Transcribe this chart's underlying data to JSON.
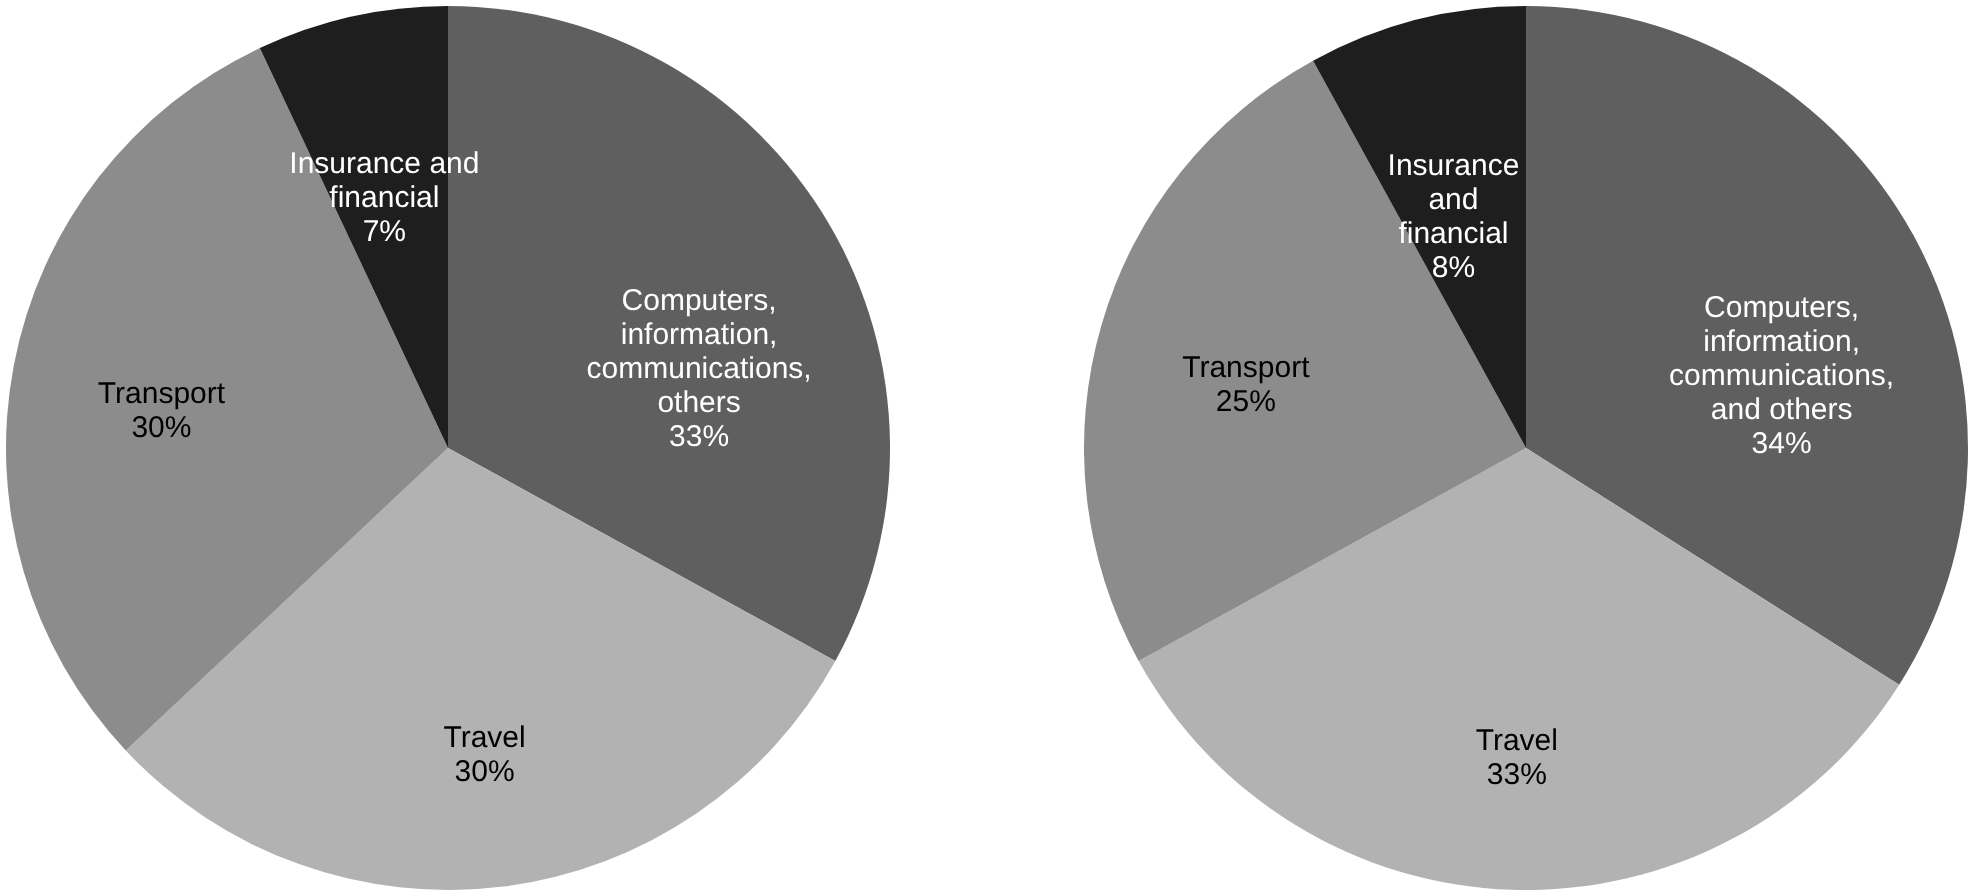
{
  "chart_data": [
    {
      "type": "pie",
      "categories": [
        "Computers,\ninformation,\ncommunications,\nothers",
        "Travel",
        "Transport",
        "Insurance and\nfinancial"
      ],
      "values": [
        33,
        30,
        30,
        7
      ],
      "value_labels": [
        "33%",
        "30%",
        "30%",
        "7%"
      ],
      "colors": [
        "#5f5f5f",
        "#b2b2b2",
        "#8c8c8c",
        "#1e1e1e"
      ],
      "legend": false
    },
    {
      "type": "pie",
      "categories": [
        "Computers,\ninformation,\ncommunications,\nand others",
        "Travel",
        "Transport",
        "Insurance\nand\nfinancial"
      ],
      "values": [
        34,
        33,
        25,
        8
      ],
      "value_labels": [
        "34%",
        "33%",
        "25%",
        "8%"
      ],
      "colors": [
        "#5f5f5f",
        "#b2b2b2",
        "#8c8c8c",
        "#1e1e1e"
      ],
      "legend": false
    }
  ]
}
